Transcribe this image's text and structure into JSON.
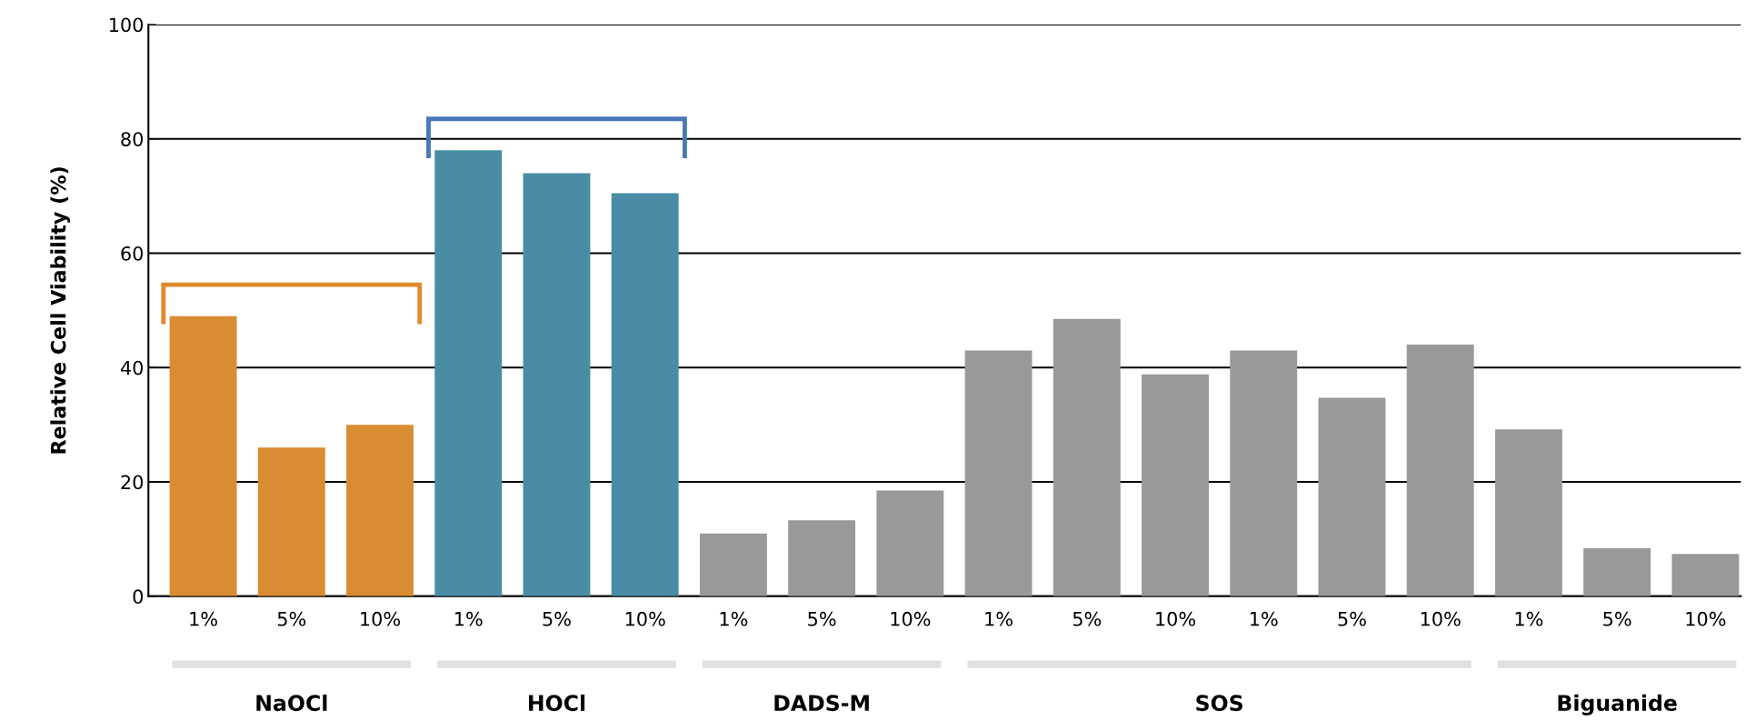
{
  "chart_data": {
    "type": "bar",
    "ylabel": "Relative Cell Viability (%)",
    "categories": [
      "1%",
      "5%",
      "10%",
      "1%",
      "5%",
      "10%",
      "1%",
      "5%",
      "10%",
      "1%",
      "5%",
      "10%",
      "1%",
      "5%",
      "10%",
      "1%",
      "5%",
      "10%"
    ],
    "values": [
      49,
      26,
      30,
      78,
      74,
      70.5,
      11,
      13.3,
      18.5,
      43,
      48.5,
      38.8,
      43,
      34.7,
      44,
      29.2,
      8.4,
      7.4
    ],
    "colors": [
      "#d98c32",
      "#d98c32",
      "#d98c32",
      "#4a8ca5",
      "#4a8ca5",
      "#4a8ca5",
      "#999999",
      "#999999",
      "#999999",
      "#999999",
      "#999999",
      "#999999",
      "#999999",
      "#999999",
      "#999999",
      "#999999",
      "#999999",
      "#999999"
    ],
    "annotations": [
      "NaOCl",
      "HOCl",
      "DADS-M",
      "SOS",
      "Biguanide"
    ],
    "ylim": [
      0,
      100
    ],
    "yticks": [
      0,
      20,
      40,
      60,
      80,
      100
    ],
    "grid": "y"
  }
}
